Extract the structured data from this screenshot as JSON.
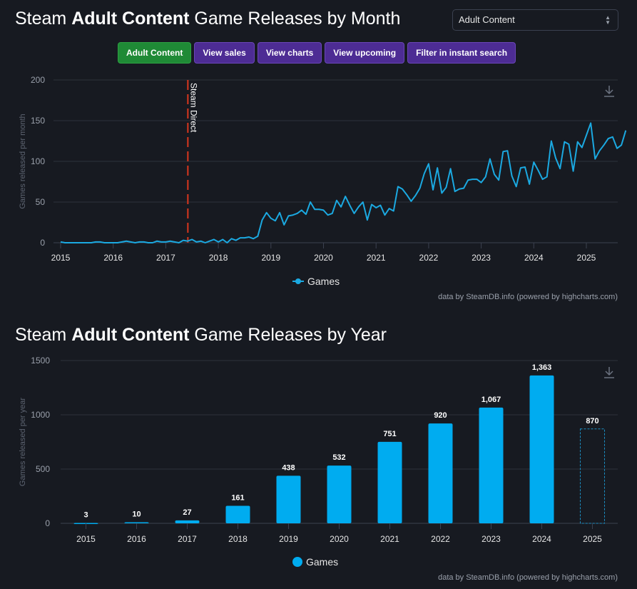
{
  "header": {
    "title_pre": "Steam ",
    "title_bold": "Adult Content",
    "title_month_post": " Game Releases by Month",
    "title_year_post": " Game Releases by Year"
  },
  "select": {
    "value": "Adult Content",
    "icon": "updown-arrows-icon"
  },
  "buttons": [
    {
      "label": "Adult Content",
      "color": "#1f8a36"
    },
    {
      "label": "View sales",
      "color": "#4d2c94"
    },
    {
      "label": "View charts",
      "color": "#4d2c94"
    },
    {
      "label": "View upcoming",
      "color": "#4d2c94"
    },
    {
      "label": "Filter in instant search",
      "color": "#4d2c94"
    }
  ],
  "credits": "data by SteamDB.info (powered by highcharts.com)",
  "chart_data": [
    {
      "type": "line",
      "title": "Steam Adult Content Game Releases by Month",
      "xlabel": "",
      "ylabel": "Games released per month",
      "ylim": [
        0,
        200
      ],
      "yticks": [
        0,
        50,
        100,
        150,
        200
      ],
      "xticks": [
        "2015",
        "2016",
        "2017",
        "2018",
        "2019",
        "2020",
        "2021",
        "2022",
        "2023",
        "2024",
        "2025"
      ],
      "xrange_years": [
        2015,
        2025.7
      ],
      "grid": true,
      "legend": "bottom-center",
      "color": "#1ba9e1",
      "annotation": {
        "label": "Steam Direct",
        "x_year": 2017.42,
        "color": "#d9361e"
      },
      "series": [
        {
          "name": "Games",
          "start": "2015-01",
          "values": [
            1,
            0,
            0,
            0,
            0,
            0,
            0,
            0,
            1,
            1,
            0,
            0,
            0,
            0,
            1,
            2,
            1,
            0,
            1,
            1,
            0,
            0,
            2,
            1,
            1,
            2,
            1,
            0,
            3,
            2,
            4,
            1,
            2,
            0,
            2,
            4,
            1,
            4,
            0,
            5,
            3,
            6,
            6,
            7,
            5,
            8,
            28,
            37,
            30,
            27,
            37,
            22,
            33,
            34,
            36,
            40,
            35,
            50,
            41,
            41,
            40,
            34,
            36,
            52,
            44,
            57,
            46,
            36,
            44,
            50,
            28,
            47,
            43,
            46,
            34,
            42,
            39,
            69,
            66,
            59,
            51,
            58,
            67,
            85,
            97,
            65,
            92,
            61,
            68,
            91,
            63,
            66,
            67,
            77,
            78,
            78,
            74,
            81,
            103,
            84,
            77,
            112,
            113,
            82,
            69,
            92,
            93,
            72,
            99,
            89,
            78,
            81,
            125,
            104,
            91,
            124,
            121,
            88,
            124,
            117,
            132,
            147,
            103,
            113,
            120,
            128,
            130,
            116,
            120,
            138
          ]
        }
      ]
    },
    {
      "type": "bar",
      "title": "Steam Adult Content Game Releases by Year",
      "xlabel": "",
      "ylabel": "Games released per year",
      "ylim": [
        0,
        1500
      ],
      "yticks": [
        0,
        500,
        1000,
        1500
      ],
      "categories": [
        "2015",
        "2016",
        "2017",
        "2018",
        "2019",
        "2020",
        "2021",
        "2022",
        "2023",
        "2024",
        "2025"
      ],
      "values": [
        3,
        10,
        27,
        161,
        438,
        532,
        751,
        920,
        1067,
        1363,
        870
      ],
      "data_labels": [
        "3",
        "10",
        "27",
        "161",
        "438",
        "532",
        "751",
        "920",
        "1,067",
        "1,363",
        "870"
      ],
      "partial_last": true,
      "grid": true,
      "legend": "bottom-center",
      "color": "#00acf0",
      "series": [
        {
          "name": "Games"
        }
      ]
    }
  ]
}
